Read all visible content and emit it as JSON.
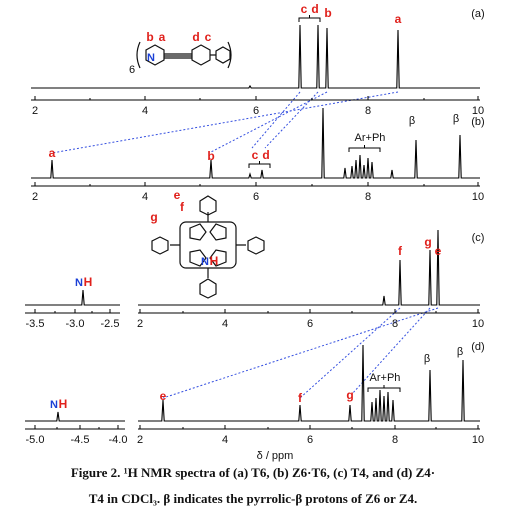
{
  "panels": [
    {
      "label": "(a)",
      "ticks": [
        "10",
        "8",
        "6",
        "4",
        "2"
      ],
      "peak_labels": [
        "c",
        "d",
        "b",
        "a"
      ],
      "structure_labels": [
        "b",
        "a",
        "d",
        "c",
        "N",
        "6"
      ]
    },
    {
      "label": "(b)",
      "ticks": [
        "10",
        "8",
        "6",
        "4",
        "2"
      ],
      "peak_labels": [
        "β",
        "β",
        "Ar+Ph",
        "c",
        "d",
        "b",
        "a"
      ]
    },
    {
      "label": "(c)",
      "ticks": [
        "10",
        "8",
        "6",
        "4",
        "2"
      ],
      "break_ticks": [
        "-2.5",
        "-3.0",
        "-3.5"
      ],
      "peak_labels": [
        "e",
        "g",
        "f"
      ],
      "nh": [
        "N",
        "H"
      ],
      "structure_labels": [
        "e",
        "f",
        "g",
        "N",
        "H"
      ]
    },
    {
      "label": "(d)",
      "ticks": [
        "10",
        "8",
        "6",
        "4",
        "2"
      ],
      "break_ticks": [
        "-4.0",
        "-4.5",
        "-5.0"
      ],
      "peak_labels": [
        "β",
        "β",
        "Ar+Ph",
        "g",
        "f",
        "e"
      ],
      "nh": [
        "N",
        "H"
      ]
    }
  ],
  "axis_label": "δ / ppm",
  "caption": [
    "Figure 2.",
    "¹H NMR spectra of (a) T6, (b) Z6·T6, (c) T4, and (d) Z4·",
    "T4 in CDCl₃. β indicates the pyrrolic-β protons of Z6 or Z4."
  ]
}
